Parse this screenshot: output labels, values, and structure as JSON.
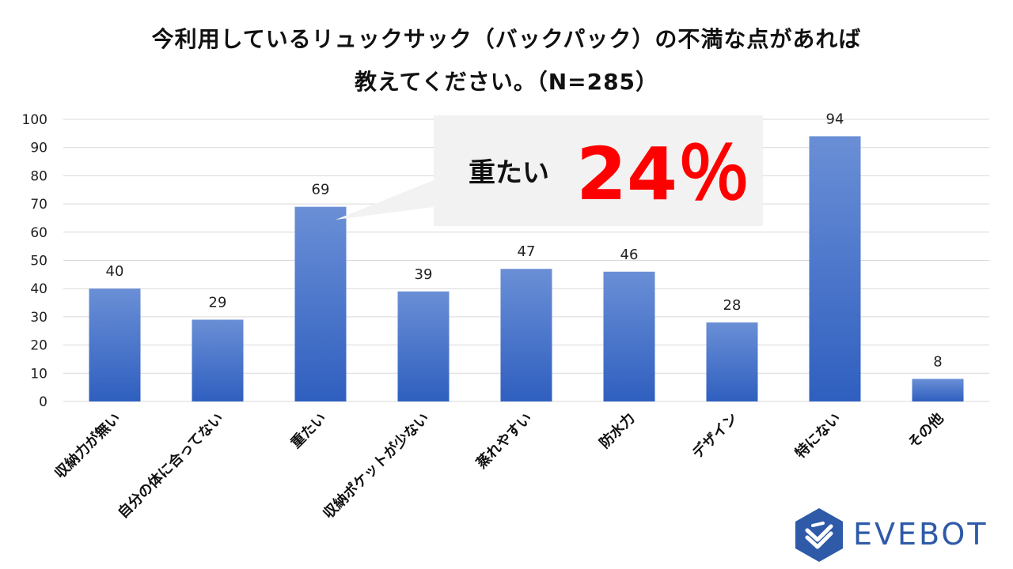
{
  "title": {
    "line1": "今利用しているリュックサック（バックパック）の不満な点があれば",
    "line2": "教えてください。（N=285）"
  },
  "callout": {
    "label": "重たい",
    "value": "24％",
    "value_color": "#ff0000"
  },
  "logo": {
    "text": "EVEBOT",
    "color": "#2e5aa8"
  },
  "colors": {
    "bar_top": "#6a8fd6",
    "bar_bottom": "#2f5fbf",
    "grid": "#d9d9d9",
    "callout_bg": "#f2f2f2"
  },
  "chart_data": {
    "type": "bar",
    "categories": [
      "収納力が無い",
      "自分の体に合ってない",
      "重たい",
      "収納ポケットが少ない",
      "蒸れやすい",
      "防水力",
      "デザイン",
      "特にない",
      "その他"
    ],
    "values": [
      40,
      29,
      69,
      39,
      47,
      46,
      28,
      94,
      8
    ],
    "ylim": [
      0,
      100
    ],
    "yticks": [
      0,
      10,
      20,
      30,
      40,
      50,
      60,
      70,
      80,
      90,
      100
    ],
    "grid": true,
    "data_labels": true,
    "legend": "none"
  }
}
